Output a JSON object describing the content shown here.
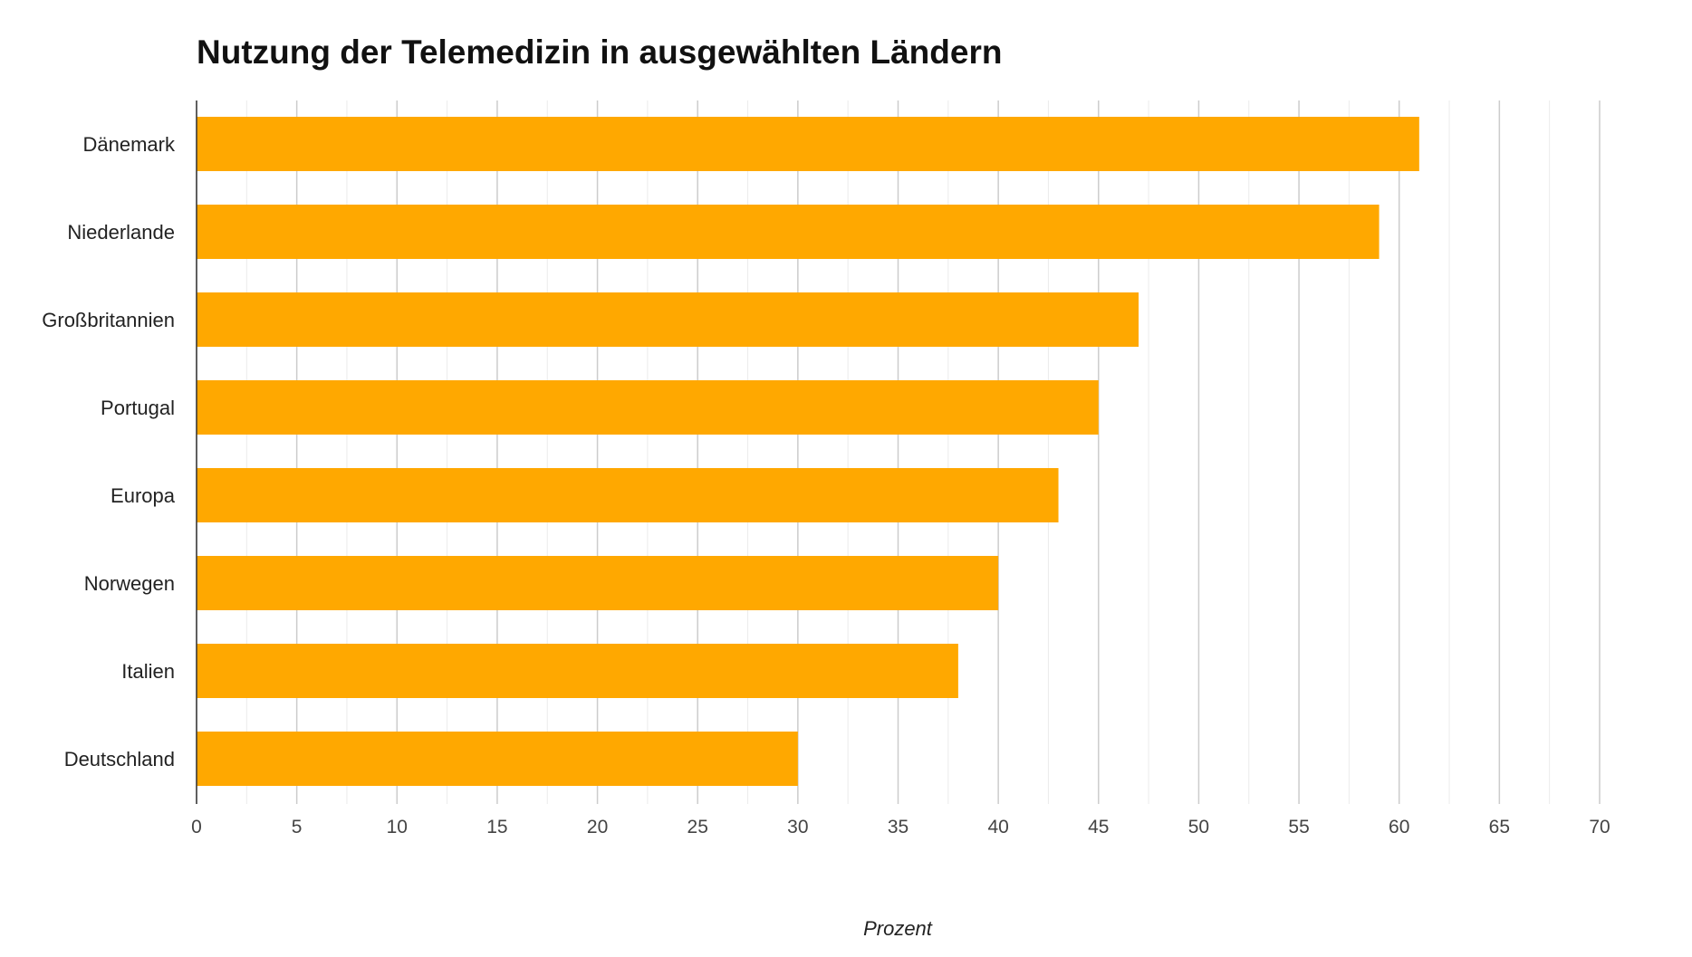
{
  "chart_data": {
    "type": "bar",
    "orientation": "horizontal",
    "title": "Nutzung der Telemedizin in ausgewählten Ländern",
    "xlabel": "Prozent",
    "ylabel": "",
    "categories": [
      "Dänemark",
      "Niederlande",
      "Großbritannien",
      "Portugal",
      "Europa",
      "Norwegen",
      "Italien",
      "Deutschland"
    ],
    "values": [
      61,
      59,
      47,
      45,
      43,
      40,
      38,
      30
    ],
    "xlim": [
      0,
      70
    ],
    "xticks": [
      0,
      5,
      10,
      15,
      20,
      25,
      30,
      35,
      40,
      45,
      50,
      55,
      60,
      65,
      70
    ],
    "grid": true,
    "colors": {
      "bar": "#FFA800",
      "grid": "#cccccc",
      "minor_grid": "#ebebeb",
      "axis": "#333333"
    }
  }
}
